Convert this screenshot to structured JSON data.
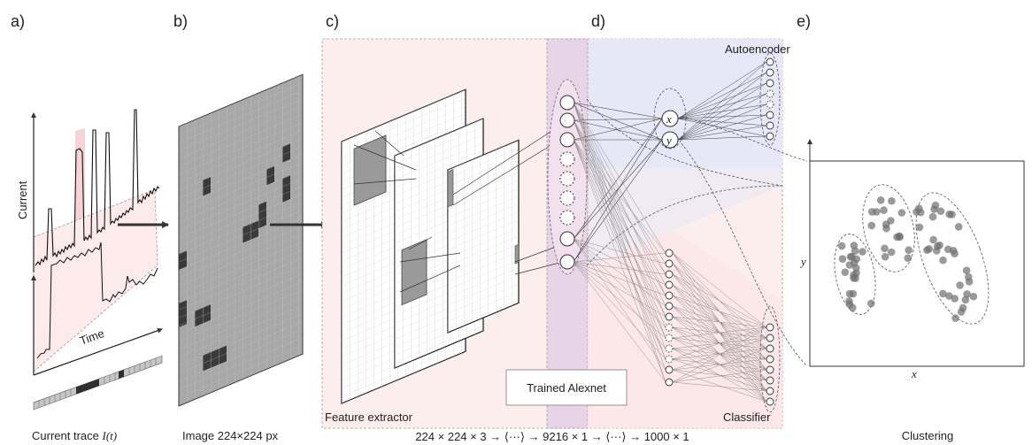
{
  "panels": {
    "a": "a)",
    "b": "b)",
    "c": "c)",
    "d": "d)",
    "e": "e)"
  },
  "captions": {
    "a_prefix": "Current trace ",
    "a_var": "I(t)",
    "b": "Image 224×224 px",
    "c": "224 × 224 × 3 → ⟨···⟩ → 9216 × 1 → ⟨···⟩ → 1000 × 1",
    "e": "Clustering"
  },
  "labels": {
    "current_axis": "Current",
    "time_axis": "Time",
    "feature_extractor": "Feature extractor",
    "trained_alexnet": "Trained Alexnet",
    "autoencoder": "Autoencoder",
    "classifier": "Classifier",
    "latent_x": "x",
    "latent_y": "y",
    "scatter_x": "x",
    "scatter_y": "y"
  },
  "colors": {
    "pink_region": "#fdeaea",
    "pink_trace": "#f6d3d5",
    "blue_region": "#e6e8f7",
    "purple_overlap": "#e7d4e6",
    "cell_grey": "#a8a8a8",
    "cell_dark": "#3a3a3a",
    "point_grey": "#777777"
  }
}
